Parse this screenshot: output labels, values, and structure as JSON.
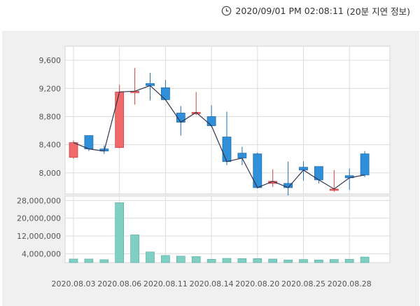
{
  "header": {
    "timestamp": "2020/09/01 PM 02:08:11",
    "delay_note": "(20분 지연 정보)",
    "icon": "clock-icon"
  },
  "colors": {
    "up": "#f06a6a",
    "down": "#2f8fd8",
    "volume": "#7fcfc3",
    "close_line": "#33334d"
  },
  "chart_data": [
    {
      "type": "candlestick",
      "title": "",
      "ylim": [
        7700,
        9800
      ],
      "yticks": [
        8000,
        8400,
        8800,
        9200,
        9600
      ],
      "ytick_labels": [
        "8,000",
        "8,400",
        "8,800",
        "9,200",
        "9,600"
      ],
      "grid": true,
      "x": [
        "2020.08.03",
        "2020.08.04",
        "2020.08.05",
        "2020.08.06",
        "2020.08.07",
        "2020.08.10",
        "2020.08.11",
        "2020.08.12",
        "2020.08.13",
        "2020.08.14",
        "2020.08.18",
        "2020.08.19",
        "2020.08.20",
        "2020.08.21",
        "2020.08.24",
        "2020.08.25",
        "2020.08.26",
        "2020.08.27",
        "2020.08.28",
        "2020.08.31"
      ],
      "x_tick_labels": [
        "2020.08.03",
        "2020.08.06",
        "2020.08.11",
        "2020.08.14",
        "2020.08.20",
        "2020.08.25",
        "2020.08.28"
      ],
      "x_tick_indices": [
        0,
        3,
        6,
        9,
        12,
        15,
        18
      ],
      "open": [
        8220,
        8530,
        8340,
        8360,
        9140,
        9270,
        9210,
        8850,
        8850,
        8800,
        8510,
        8280,
        8270,
        7850,
        7850,
        8080,
        8090,
        7760,
        7960,
        8270
      ],
      "high": [
        8460,
        8530,
        8390,
        9250,
        9490,
        9420,
        9320,
        8950,
        9150,
        8960,
        8870,
        8370,
        8290,
        8050,
        8160,
        8160,
        8090,
        8040,
        8060,
        8310
      ],
      "low": [
        8200,
        8310,
        8270,
        8350,
        8970,
        9030,
        9030,
        8530,
        8820,
        8650,
        8110,
        8110,
        7780,
        7800,
        7680,
        7890,
        7850,
        7730,
        7760,
        7940
      ],
      "close": [
        8430,
        8340,
        8310,
        9150,
        9160,
        9240,
        9040,
        8720,
        8860,
        8670,
        8160,
        8210,
        7790,
        7880,
        7790,
        8040,
        7900,
        7770,
        7930,
        7970
      ]
    },
    {
      "type": "bar",
      "title": "",
      "ylim": [
        0,
        30000000
      ],
      "yticks": [
        4000000,
        12000000,
        20000000,
        28000000
      ],
      "ytick_labels": [
        "4,000,000",
        "12,000,000",
        "20,000,000",
        "28,000,000"
      ],
      "values": [
        1600000,
        1600000,
        1300000,
        27000000,
        12500000,
        4800000,
        3200000,
        2900000,
        2700000,
        1500000,
        1900000,
        1800000,
        1800000,
        1600000,
        1200000,
        1400000,
        1200000,
        1400000,
        1500000,
        2500000
      ]
    }
  ]
}
